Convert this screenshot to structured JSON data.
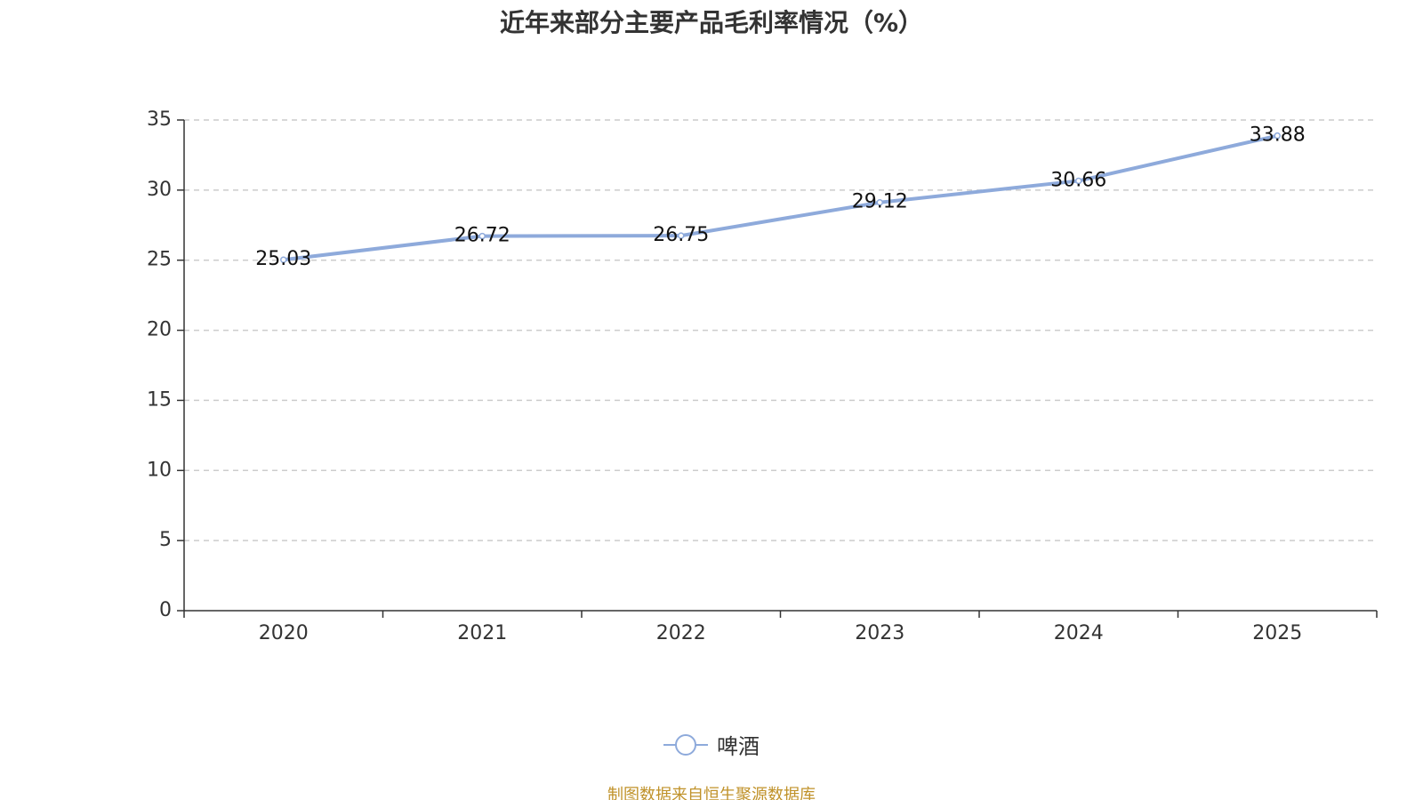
{
  "chart_data": {
    "type": "line",
    "title": "近年来部分主要产品毛利率情况（%）",
    "categories": [
      "2020",
      "2021",
      "2022",
      "2023",
      "2024",
      "2025"
    ],
    "series": [
      {
        "name": "啤酒",
        "values": [
          25.03,
          26.72,
          26.75,
          29.12,
          30.66,
          33.88
        ],
        "labels": [
          "25.03",
          "26.72",
          "26.75",
          "29.12",
          "30.66",
          "33.88"
        ],
        "color": "#8eaadb"
      }
    ],
    "yticks": [
      "0",
      "5",
      "10",
      "15",
      "20",
      "25",
      "30",
      "35"
    ],
    "ylim": [
      0,
      35
    ],
    "xlabel": "",
    "ylabel": "",
    "grid": true,
    "legend_position": "bottom"
  },
  "source_text": "制图数据来自恒生聚源数据库"
}
